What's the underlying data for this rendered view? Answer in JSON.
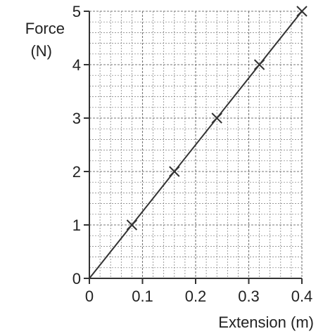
{
  "chart_data": {
    "type": "scatter",
    "title": "",
    "xlabel": "Extension (m)",
    "ylabel_line1": "Force",
    "ylabel_line2": "(N)",
    "xlim": [
      0,
      0.4
    ],
    "ylim": [
      0,
      5
    ],
    "x_ticks": [
      0,
      0.1,
      0.2,
      0.3,
      0.4
    ],
    "x_tick_labels": [
      "0",
      "0.1",
      "0.2",
      "0.3",
      "0.4"
    ],
    "y_ticks": [
      0,
      1,
      2,
      3,
      4,
      5
    ],
    "y_tick_labels": [
      "0",
      "1",
      "2",
      "3",
      "4",
      "5"
    ],
    "grid": true,
    "grid_minor_divisions_x": 20,
    "grid_minor_divisions_y": 25,
    "marker": "x",
    "points": [
      {
        "x": 0.08,
        "y": 1
      },
      {
        "x": 0.16,
        "y": 2
      },
      {
        "x": 0.24,
        "y": 3
      },
      {
        "x": 0.32,
        "y": 4
      },
      {
        "x": 0.4,
        "y": 5
      }
    ],
    "best_fit_line": {
      "x": [
        0,
        0.4
      ],
      "y": [
        0,
        5
      ]
    },
    "colors": {
      "line": "#333333",
      "grid": "#777777",
      "axis": "#333333"
    }
  }
}
